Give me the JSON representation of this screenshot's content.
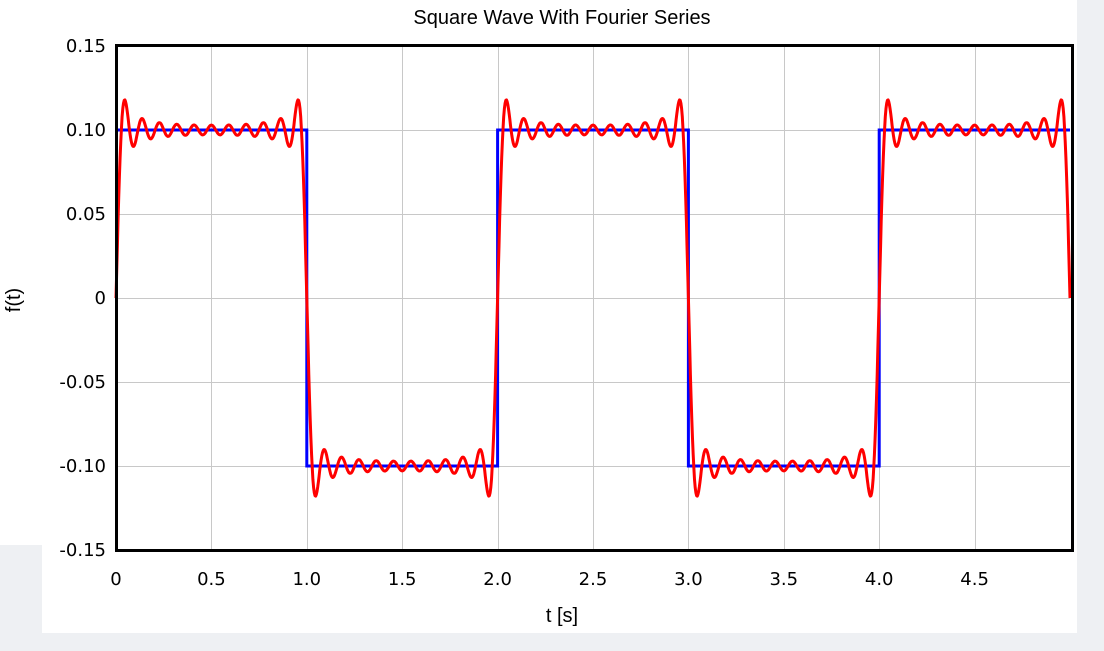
{
  "chart_data": {
    "type": "line",
    "title": "Square Wave With Fourier Series",
    "xlabel": "t [s]",
    "ylabel": "f(t)",
    "xlim": [
      0,
      5
    ],
    "ylim": [
      -0.15,
      0.15
    ],
    "grid": true,
    "x_ticks": [
      0,
      0.5,
      1.0,
      1.5,
      2.0,
      2.5,
      3.0,
      3.5,
      4.0,
      4.5
    ],
    "x_tick_labels": [
      "0",
      "0.5",
      "1.0",
      "1.5",
      "2.0",
      "2.5",
      "3.0",
      "3.5",
      "4.0",
      "4.5"
    ],
    "y_ticks": [
      0.15,
      0.1,
      0.05,
      0,
      -0.05,
      -0.1,
      -0.15
    ],
    "y_tick_labels": [
      "0.15",
      "0.10",
      "0.05",
      "0",
      "-0.05",
      "-0.10",
      "-0.15"
    ],
    "series": [
      {
        "color": "#0000ff",
        "points": [
          [
            0,
            0.1
          ],
          [
            1,
            0.1
          ],
          [
            1,
            -0.1
          ],
          [
            2,
            -0.1
          ],
          [
            2,
            0.1
          ],
          [
            3,
            0.1
          ],
          [
            3,
            -0.1
          ],
          [
            4,
            -0.1
          ],
          [
            4,
            0.1
          ],
          [
            5,
            0.1
          ]
        ]
      },
      {
        "color": "#ff0000",
        "amplitude": 0.1,
        "period": 2,
        "harmonics": [
          1,
          3,
          5,
          7,
          9,
          11,
          13,
          15,
          17,
          19,
          21
        ],
        "t_range": [
          0,
          5
        ]
      }
    ]
  }
}
